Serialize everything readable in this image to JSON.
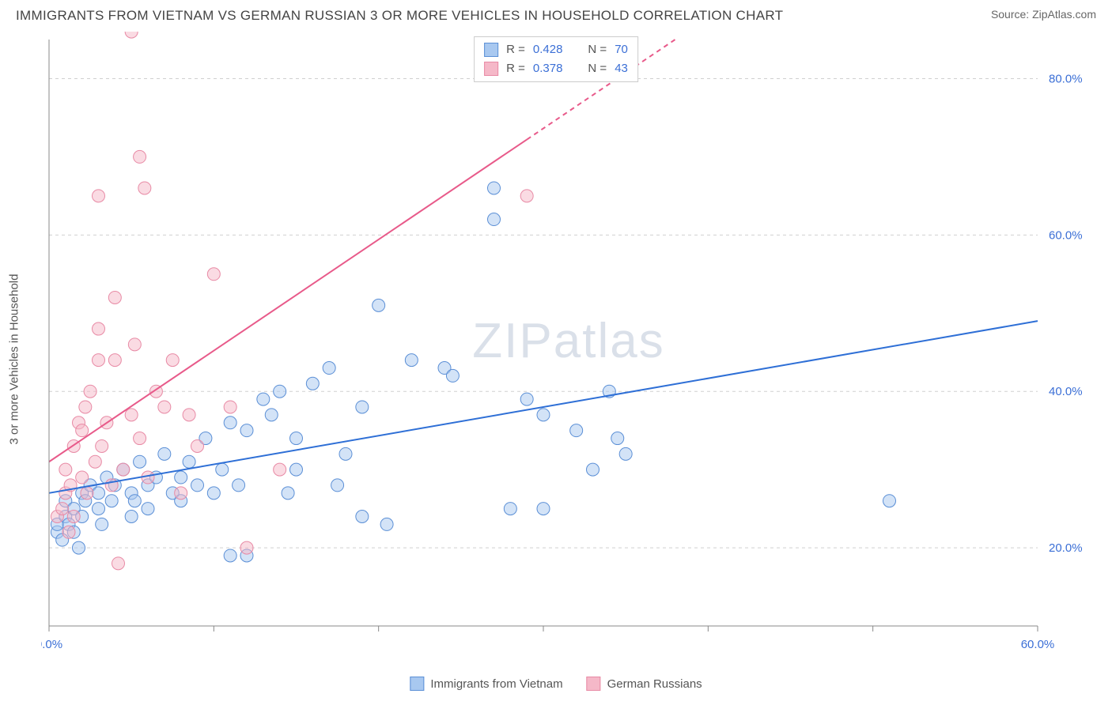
{
  "title": "IMMIGRANTS FROM VIETNAM VS GERMAN RUSSIAN 3 OR MORE VEHICLES IN HOUSEHOLD CORRELATION CHART",
  "source": "Source: ZipAtlas.com",
  "watermark": "ZIPatlas",
  "y_axis_label": "3 or more Vehicles in Household",
  "chart": {
    "type": "scatter",
    "background_color": "#ffffff",
    "grid_color": "#d0d0d0",
    "grid_dasharray": "4 4",
    "axis_color": "#888888",
    "tick_label_color": "#3b6fd6",
    "xlim": [
      0,
      60
    ],
    "ylim": [
      10,
      85
    ],
    "x_ticks": [
      0,
      10,
      20,
      30,
      40,
      50,
      60
    ],
    "x_tick_labels": [
      "0.0%",
      "",
      "",
      "",
      "",
      "",
      "60.0%"
    ],
    "y_ticks": [
      20,
      40,
      60,
      80
    ],
    "y_tick_labels": [
      "20.0%",
      "40.0%",
      "60.0%",
      "80.0%"
    ],
    "marker_radius": 8,
    "marker_opacity": 0.5,
    "line_width": 2,
    "series": [
      {
        "name": "Immigrants from Vietnam",
        "color_fill": "#a8c8f0",
        "color_stroke": "#5b8fd6",
        "line_color": "#2e6fd6",
        "R": "0.428",
        "N": "70",
        "trend": {
          "x1": 0,
          "y1": 27,
          "x2": 60,
          "y2": 49,
          "dash_from_x": null
        },
        "points": [
          [
            0.5,
            22
          ],
          [
            0.5,
            23
          ],
          [
            0.8,
            21
          ],
          [
            1,
            24
          ],
          [
            1,
            26
          ],
          [
            1.2,
            23
          ],
          [
            1.5,
            25
          ],
          [
            1.5,
            22
          ],
          [
            1.8,
            20
          ],
          [
            2,
            27
          ],
          [
            2,
            24
          ],
          [
            2.2,
            26
          ],
          [
            2.5,
            28
          ],
          [
            3,
            25
          ],
          [
            3,
            27
          ],
          [
            3.2,
            23
          ],
          [
            3.5,
            29
          ],
          [
            3.8,
            26
          ],
          [
            4,
            28
          ],
          [
            4.5,
            30
          ],
          [
            5,
            27
          ],
          [
            5,
            24
          ],
          [
            5.2,
            26
          ],
          [
            5.5,
            31
          ],
          [
            6,
            28
          ],
          [
            6,
            25
          ],
          [
            6.5,
            29
          ],
          [
            7,
            32
          ],
          [
            7.5,
            27
          ],
          [
            8,
            26
          ],
          [
            8,
            29
          ],
          [
            8.5,
            31
          ],
          [
            9,
            28
          ],
          [
            9.5,
            34
          ],
          [
            10,
            27
          ],
          [
            10.5,
            30
          ],
          [
            11,
            36
          ],
          [
            11,
            19
          ],
          [
            11.5,
            28
          ],
          [
            12,
            35
          ],
          [
            12,
            19
          ],
          [
            13,
            39
          ],
          [
            13.5,
            37
          ],
          [
            14,
            40
          ],
          [
            14.5,
            27
          ],
          [
            15,
            34
          ],
          [
            15,
            30
          ],
          [
            16,
            41
          ],
          [
            17,
            43
          ],
          [
            17.5,
            28
          ],
          [
            18,
            32
          ],
          [
            19,
            38
          ],
          [
            19,
            24
          ],
          [
            20,
            51
          ],
          [
            20.5,
            23
          ],
          [
            22,
            44
          ],
          [
            24,
            43
          ],
          [
            24.5,
            42
          ],
          [
            27,
            62
          ],
          [
            27,
            66
          ],
          [
            29,
            39
          ],
          [
            30,
            37
          ],
          [
            32,
            35
          ],
          [
            33,
            30
          ],
          [
            34,
            40
          ],
          [
            34.5,
            34
          ],
          [
            35,
            32
          ],
          [
            28,
            25
          ],
          [
            30,
            25
          ],
          [
            51,
            26
          ]
        ]
      },
      {
        "name": "German Russians",
        "color_fill": "#f5b8c8",
        "color_stroke": "#e88aa5",
        "line_color": "#e85a8a",
        "R": "0.378",
        "N": "43",
        "trend": {
          "x1": 0,
          "y1": 31,
          "x2": 38,
          "y2": 85,
          "dash_from_x": 29
        },
        "points": [
          [
            0.5,
            24
          ],
          [
            0.8,
            25
          ],
          [
            1,
            27
          ],
          [
            1,
            30
          ],
          [
            1.2,
            22
          ],
          [
            1.3,
            28
          ],
          [
            1.5,
            24
          ],
          [
            1.5,
            33
          ],
          [
            1.8,
            36
          ],
          [
            2,
            29
          ],
          [
            2,
            35
          ],
          [
            2.2,
            38
          ],
          [
            2.3,
            27
          ],
          [
            2.5,
            40
          ],
          [
            2.8,
            31
          ],
          [
            3,
            44
          ],
          [
            3,
            48
          ],
          [
            3,
            65
          ],
          [
            3.2,
            33
          ],
          [
            3.5,
            36
          ],
          [
            3.8,
            28
          ],
          [
            4,
            44
          ],
          [
            4,
            52
          ],
          [
            4.2,
            18
          ],
          [
            4.5,
            30
          ],
          [
            5,
            37
          ],
          [
            5,
            86
          ],
          [
            5.2,
            46
          ],
          [
            5.5,
            34
          ],
          [
            5.5,
            70
          ],
          [
            5.8,
            66
          ],
          [
            6,
            29
          ],
          [
            6.5,
            40
          ],
          [
            7,
            38
          ],
          [
            7.5,
            44
          ],
          [
            8,
            27
          ],
          [
            8.5,
            37
          ],
          [
            9,
            33
          ],
          [
            10,
            55
          ],
          [
            11,
            38
          ],
          [
            12,
            20
          ],
          [
            14,
            30
          ],
          [
            29,
            65
          ]
        ]
      }
    ]
  },
  "legend_bottom": [
    {
      "label": "Immigrants from Vietnam",
      "fill": "#a8c8f0",
      "stroke": "#5b8fd6"
    },
    {
      "label": "German Russians",
      "fill": "#f5b8c8",
      "stroke": "#e88aa5"
    }
  ]
}
